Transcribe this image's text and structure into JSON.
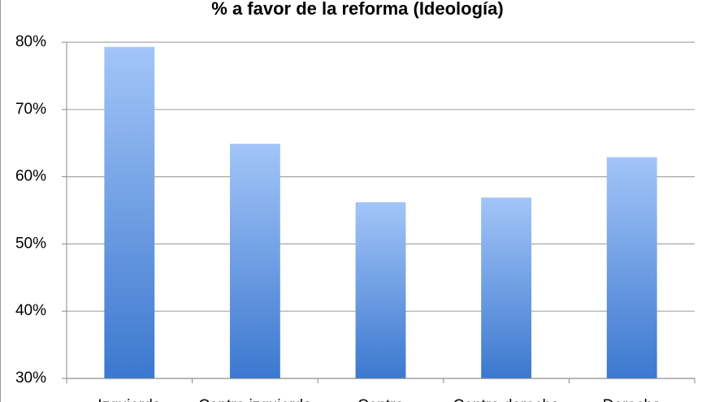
{
  "chart_data": {
    "type": "bar",
    "title": "% a favor de la reforma (Ideología)",
    "categories": [
      "Izquierda",
      "Centro izquierda",
      "Centro",
      "Centro derecha",
      "Derecha"
    ],
    "values": [
      79.3,
      64.9,
      56.2,
      56.9,
      62.9
    ],
    "color_top": "#a3c5f8",
    "color_bottom": "#3c78cf",
    "ylim": [
      30,
      80
    ],
    "yticks": [
      {
        "value": 30,
        "label": "30%"
      },
      {
        "value": 40,
        "label": "40%"
      },
      {
        "value": 50,
        "label": "50%"
      },
      {
        "value": 60,
        "label": "60%"
      },
      {
        "value": 70,
        "label": "70%"
      },
      {
        "value": 80,
        "label": "80%"
      }
    ],
    "grid": true
  }
}
